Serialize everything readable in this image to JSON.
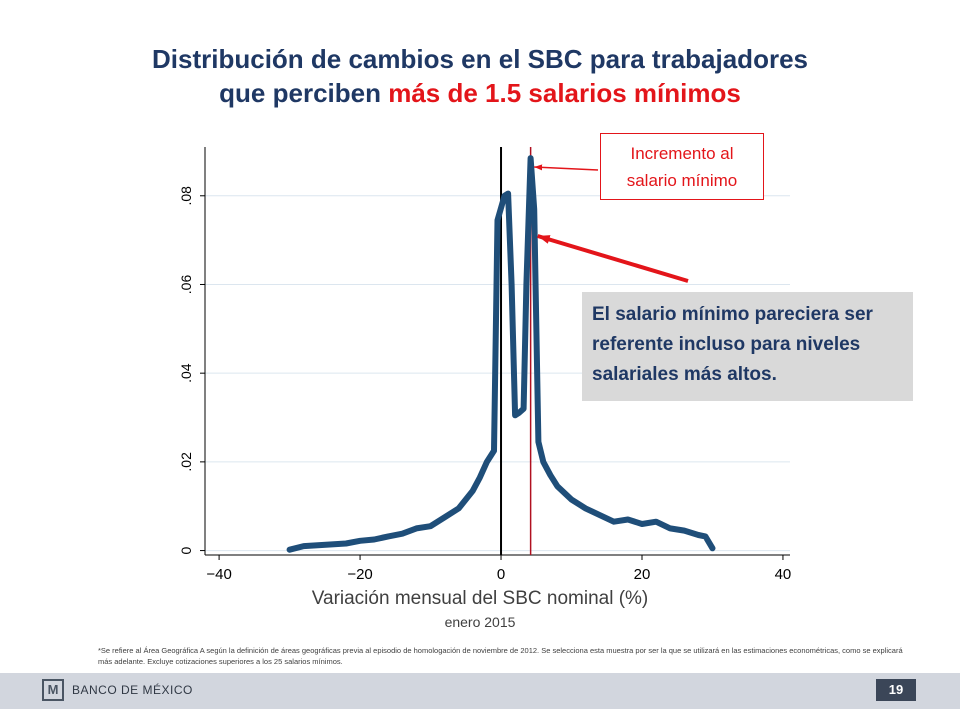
{
  "title": {
    "line1": "Distribución de cambios en el SBC para trabajadores",
    "line2_prefix": "que perciben ",
    "line2_highlight": "más de 1.5 salarios mínimos"
  },
  "annotations": {
    "callout_red": "Incremento al salario mínimo",
    "callout_grey": "El salario mínimo pareciera ser referente incluso para niveles salariales más altos."
  },
  "footnote": "*Se refiere al Área Geográfica A según la definición de áreas geográficas previa al episodio de homologación de noviembre de 2012. Se selecciona esta muestra por ser la que se utilizará en las estimaciones econométricas, como se explicará más adelante. Excluye cotizaciones superiores a los 25 salarios mínimos.",
  "footer": {
    "logo_mark": "M",
    "org_name": "BANCO DE MÉXICO",
    "page_number": "19"
  },
  "colors": {
    "title": "#1f3864",
    "highlight": "#e3151a",
    "series": "#1f4e79",
    "reference_line": "#b01020",
    "zero_line": "#000000",
    "grid": "#dce6ef"
  },
  "chart_data": {
    "type": "line",
    "xlabel": "Variación mensual del SBC nominal (%)",
    "subtitle": "enero 2015",
    "ylabel": "",
    "xlim": [
      -42,
      41
    ],
    "ylim": [
      -0.001,
      0.091
    ],
    "xticks": [
      -40,
      -20,
      0,
      20,
      40
    ],
    "yticks": [
      0,
      0.02,
      0.04,
      0.06,
      0.08
    ],
    "ytick_labels": [
      "0",
      ".02",
      ".04",
      ".06",
      ".08"
    ],
    "grid": true,
    "reference_lines": [
      {
        "x": 0,
        "color": "#000000"
      },
      {
        "x": 4.2,
        "color": "#b01020"
      }
    ],
    "series": [
      {
        "x": [
          -30,
          -28,
          -26,
          -24,
          -22,
          -20,
          -18,
          -16,
          -14,
          -12,
          -10,
          -8,
          -6,
          -4,
          -3,
          -2,
          -1,
          -0.5,
          0.5,
          1,
          1.5,
          2,
          2.5,
          3.2,
          3.6,
          4.2,
          4.7,
          5.3,
          6,
          7,
          8,
          10,
          12,
          14,
          16,
          18,
          20,
          22,
          24,
          26,
          28,
          29,
          30
        ],
        "values": [
          0.0002,
          0.001,
          0.0012,
          0.0014,
          0.0016,
          0.0022,
          0.0025,
          0.0032,
          0.0038,
          0.005,
          0.0055,
          0.0075,
          0.0095,
          0.0135,
          0.0165,
          0.02,
          0.0225,
          0.0745,
          0.08,
          0.0805,
          0.06,
          0.0305,
          0.031,
          0.032,
          0.06,
          0.0885,
          0.077,
          0.0245,
          0.02,
          0.017,
          0.0145,
          0.0115,
          0.0095,
          0.008,
          0.0065,
          0.007,
          0.006,
          0.0065,
          0.005,
          0.0045,
          0.0035,
          0.0032,
          0.0005
        ]
      }
    ]
  }
}
